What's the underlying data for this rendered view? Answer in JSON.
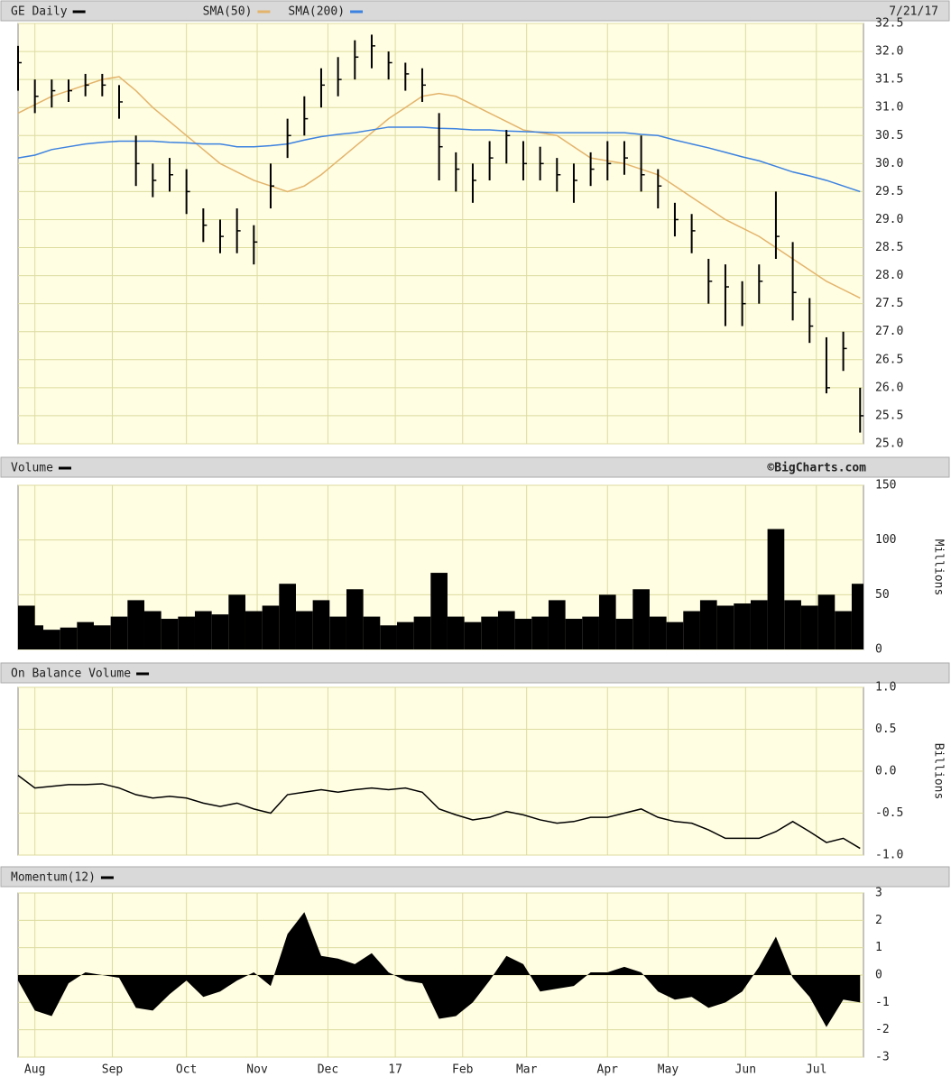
{
  "chart_data": [
    {
      "type": "ohlc",
      "date": "7/21/17",
      "xlim": [
        0,
        251
      ],
      "x": [
        0,
        5,
        10,
        15,
        20,
        25,
        30,
        35,
        40,
        45,
        50,
        55,
        60,
        65,
        70,
        75,
        80,
        85,
        90,
        95,
        100,
        105,
        110,
        115,
        120,
        125,
        130,
        135,
        140,
        145,
        150,
        155,
        160,
        165,
        170,
        175,
        180,
        185,
        190,
        195,
        200,
        205,
        210,
        215,
        220,
        225,
        230,
        235,
        240,
        245,
        250
      ],
      "ylim": [
        25,
        32.5
      ],
      "yticks": [
        {
          "value": 25,
          "label": "25.0"
        },
        25.5,
        {
          "value": 26,
          "label": "26.0"
        },
        26.5,
        {
          "value": 27,
          "label": "27.0"
        },
        27.5,
        {
          "value": 28,
          "label": "28.0"
        },
        28.5,
        {
          "value": 29,
          "label": "29.0"
        },
        29.5,
        {
          "value": 30,
          "label": "30.0"
        },
        30.5,
        {
          "value": 31,
          "label": "31.0"
        },
        31.5,
        {
          "value": 32,
          "label": "32.0"
        },
        32.5
      ],
      "grid": true,
      "series": [
        {
          "name": "GE Daily",
          "color": "#000000",
          "high": [
            32.1,
            31.5,
            31.5,
            31.5,
            31.6,
            31.6,
            31.4,
            30.5,
            30.0,
            30.1,
            29.9,
            29.2,
            29.0,
            29.2,
            28.9,
            30.0,
            30.8,
            31.2,
            31.7,
            31.9,
            32.2,
            32.3,
            32.0,
            31.8,
            31.7,
            30.9,
            30.2,
            30.0,
            30.4,
            30.6,
            30.4,
            30.3,
            30.1,
            30.0,
            30.2,
            30.4,
            30.4,
            30.5,
            29.9,
            29.3,
            29.1,
            28.3,
            28.2,
            27.9,
            28.2,
            29.5,
            28.6,
            27.6,
            26.9,
            27.0,
            26.0
          ],
          "low": [
            31.3,
            30.9,
            31.0,
            31.1,
            31.2,
            31.2,
            30.8,
            29.6,
            29.4,
            29.5,
            29.1,
            28.6,
            28.4,
            28.4,
            28.2,
            29.2,
            30.1,
            30.5,
            31.0,
            31.2,
            31.5,
            31.7,
            31.5,
            31.3,
            31.1,
            29.7,
            29.5,
            29.3,
            29.7,
            30.0,
            29.7,
            29.7,
            29.5,
            29.3,
            29.6,
            29.7,
            29.8,
            29.5,
            29.2,
            28.7,
            28.4,
            27.5,
            27.1,
            27.1,
            27.5,
            28.3,
            27.2,
            26.8,
            25.9,
            26.3,
            25.2
          ],
          "values": [
            31.8,
            31.2,
            31.3,
            31.3,
            31.4,
            31.4,
            31.1,
            30.0,
            29.7,
            29.8,
            29.5,
            28.9,
            28.7,
            28.8,
            28.6,
            29.6,
            30.5,
            30.8,
            31.4,
            31.5,
            31.9,
            32.1,
            31.8,
            31.6,
            31.4,
            30.3,
            29.9,
            29.7,
            30.1,
            30.5,
            30.0,
            30.0,
            29.8,
            29.7,
            29.9,
            30.0,
            30.1,
            29.8,
            29.6,
            29.0,
            28.8,
            27.9,
            27.8,
            27.5,
            27.9,
            28.7,
            27.7,
            27.1,
            26.0,
            26.7,
            25.5
          ]
        },
        {
          "name": "SMA(50)",
          "color": "#e3b46b",
          "values": [
            30.9,
            31.05,
            31.2,
            31.3,
            31.4,
            31.5,
            31.55,
            31.3,
            31.0,
            30.75,
            30.5,
            30.25,
            30.0,
            29.85,
            29.7,
            29.6,
            29.5,
            29.6,
            29.8,
            30.05,
            30.3,
            30.55,
            30.8,
            31.0,
            31.2,
            31.25,
            31.2,
            31.05,
            30.9,
            30.75,
            30.6,
            30.55,
            30.5,
            30.3,
            30.1,
            30.05,
            30.0,
            29.9,
            29.8,
            29.6,
            29.4,
            29.2,
            29.0,
            28.85,
            28.7,
            28.5,
            28.3,
            28.1,
            27.9,
            27.75,
            27.6
          ]
        },
        {
          "name": "SMA(200)",
          "color": "#3c82e0",
          "values": [
            30.1,
            30.15,
            30.25,
            30.3,
            30.35,
            30.38,
            30.4,
            30.4,
            30.4,
            30.38,
            30.37,
            30.35,
            30.35,
            30.3,
            30.3,
            30.32,
            30.35,
            30.42,
            30.48,
            30.52,
            30.55,
            30.6,
            30.65,
            30.65,
            30.65,
            30.63,
            30.62,
            30.6,
            30.6,
            30.58,
            30.57,
            30.56,
            30.55,
            30.55,
            30.55,
            30.55,
            30.55,
            30.52,
            30.5,
            30.42,
            30.35,
            30.28,
            30.2,
            30.12,
            30.05,
            29.95,
            29.85,
            29.78,
            29.7,
            29.6,
            29.5
          ]
        }
      ]
    },
    {
      "type": "bar",
      "credit": "©BigCharts.com",
      "y_label": "Millions",
      "ylim": [
        0,
        150
      ],
      "yticks": [
        0,
        50,
        100,
        150
      ],
      "grid": true,
      "series": [
        {
          "name": "Volume",
          "color": "#000000",
          "values": [
            40,
            22,
            18,
            20,
            25,
            22,
            30,
            45,
            35,
            28,
            30,
            35,
            32,
            50,
            35,
            40,
            60,
            35,
            45,
            30,
            55,
            30,
            22,
            25,
            30,
            70,
            30,
            25,
            30,
            35,
            28,
            30,
            45,
            28,
            30,
            50,
            28,
            55,
            30,
            25,
            35,
            45,
            40,
            42,
            45,
            110,
            45,
            40,
            50,
            35,
            60
          ]
        }
      ]
    },
    {
      "type": "line",
      "y_label": "Billions",
      "ylim": [
        -1,
        1
      ],
      "yticks": [
        {
          "value": -1,
          "label": "-1.0"
        },
        -0.5,
        {
          "value": 0,
          "label": "0.0"
        },
        0.5,
        {
          "value": 1,
          "label": "1.0"
        }
      ],
      "grid": true,
      "series": [
        {
          "name": "On Balance Volume",
          "color": "#000000",
          "values": [
            -0.05,
            -0.2,
            -0.18,
            -0.16,
            -0.16,
            -0.15,
            -0.2,
            -0.28,
            -0.32,
            -0.3,
            -0.32,
            -0.38,
            -0.42,
            -0.38,
            -0.45,
            -0.5,
            -0.28,
            -0.25,
            -0.22,
            -0.25,
            -0.22,
            -0.2,
            -0.22,
            -0.2,
            -0.25,
            -0.45,
            -0.52,
            -0.58,
            -0.55,
            -0.48,
            -0.52,
            -0.58,
            -0.62,
            -0.6,
            -0.55,
            -0.55,
            -0.5,
            -0.45,
            -0.55,
            -0.6,
            -0.62,
            -0.7,
            -0.8,
            -0.8,
            -0.8,
            -0.72,
            -0.6,
            -0.72,
            -0.85,
            -0.8,
            -0.92
          ]
        }
      ]
    },
    {
      "type": "area",
      "ylim": [
        -3,
        3
      ],
      "yticks": [
        -3,
        -2,
        -1,
        0,
        1,
        2,
        3
      ],
      "grid": true,
      "xticks": [
        {
          "value": 5,
          "label": "Aug"
        },
        {
          "value": 28,
          "label": "Sep"
        },
        {
          "value": 50,
          "label": "Oct"
        },
        {
          "value": 71,
          "label": "Nov"
        },
        {
          "value": 92,
          "label": "Dec"
        },
        {
          "value": 112,
          "label": "17"
        },
        {
          "value": 132,
          "label": "Feb"
        },
        {
          "value": 151,
          "label": "Mar"
        },
        {
          "value": 175,
          "label": "Apr"
        },
        {
          "value": 193,
          "label": "May"
        },
        {
          "value": 216,
          "label": "Jun"
        },
        {
          "value": 237,
          "label": "Jul"
        }
      ],
      "series": [
        {
          "name": "Momentum(12)",
          "color": "#000000",
          "values": [
            -0.2,
            -1.3,
            -1.5,
            -0.3,
            0.1,
            0.0,
            -0.1,
            -1.2,
            -1.3,
            -0.7,
            -0.2,
            -0.8,
            -0.6,
            -0.2,
            0.1,
            -0.4,
            1.5,
            2.3,
            0.7,
            0.6,
            0.4,
            0.8,
            0.1,
            -0.2,
            -0.3,
            -1.6,
            -1.5,
            -1.0,
            -0.2,
            0.7,
            0.4,
            -0.6,
            -0.5,
            -0.4,
            0.1,
            0.1,
            0.3,
            0.1,
            -0.6,
            -0.9,
            -0.8,
            -1.2,
            -1.0,
            -0.6,
            0.3,
            1.4,
            -0.1,
            -0.8,
            -1.9,
            -0.9,
            -1.0
          ]
        }
      ]
    }
  ]
}
